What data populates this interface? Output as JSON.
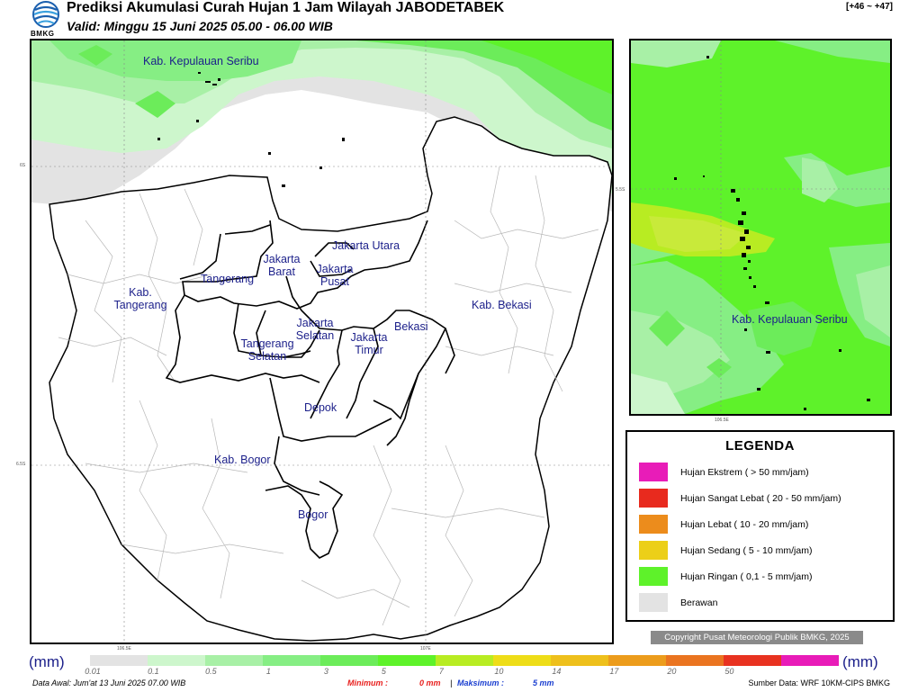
{
  "header": {
    "logo_text": "BMKG",
    "title": "Prediksi Akumulasi Curah Hujan 1 Jam Wilayah JABODETABEK",
    "subtitle": "Valid: Minggu 15 Juni 2025 05.00 - 06.00 WIB",
    "forecast_range": "[+46 ~ +47]"
  },
  "main_map": {
    "regions": [
      "Kab. Kepulauan Seribu",
      "Jakarta Utara",
      "Jakarta Barat",
      "Jakarta Pusat",
      "Tangerang",
      "Kab. Tangerang",
      "Kab. Bekasi",
      "Jakarta Selatan",
      "Jakarta Timur",
      "Bekasi",
      "Tangerang Selatan",
      "Depok",
      "Kab. Bogor",
      "Bogor"
    ],
    "lat_labels": [
      "6S",
      "6.5S"
    ],
    "lon_labels": [
      "106.5E",
      "107E"
    ]
  },
  "inset_map": {
    "region": "Kab. Kepulauan Seribu",
    "lat_label": "5.5S",
    "lon_label": "106.5E"
  },
  "legend": {
    "title": "LEGENDA",
    "items": [
      {
        "label": "Hujan Ekstrem ( > 50 mm/jam)",
        "color": "#e81cb8"
      },
      {
        "label": "Hujan Sangat Lebat ( 20 - 50 mm/jam)",
        "color": "#e82a1e"
      },
      {
        "label": "Hujan Lebat ( 10 - 20 mm/jam)",
        "color": "#ec8c1c"
      },
      {
        "label": "Hujan Sedang ( 5 - 10 mm/jam)",
        "color": "#eccf18"
      },
      {
        "label": "Hujan Ringan ( 0,1 - 5 mm/jam)",
        "color": "#5ef22a"
      },
      {
        "label": "Berawan",
        "color": "#e3e3e3"
      }
    ]
  },
  "copyright": "Copyright Pusat Meteorologi Publik BMKG, 2025",
  "colorbar": {
    "unit": "(mm)",
    "ticks": [
      "0.01",
      "0.1",
      "0.5",
      "1",
      "3",
      "5",
      "7",
      "10",
      "14",
      "17",
      "20",
      "50"
    ],
    "colors": [
      "#e3e3e3",
      "#cdf6cc",
      "#a8f0a6",
      "#86ee84",
      "#6cec5a",
      "#5ef22a",
      "#b8ec22",
      "#eedd18",
      "#eec01c",
      "#ec9c1c",
      "#ea7420",
      "#e83220",
      "#e81cb8"
    ]
  },
  "footer": {
    "data_awal": "Data Awal: Jum'at 13 Juni 2025 07.00 WIB",
    "min_label": "Minimum :",
    "min_value": "0 mm",
    "separator": "|",
    "max_label": "Maksimum :",
    "max_value": "5 mm",
    "source": "Sumber Data: WRF 10KM-CIPS BMKG"
  }
}
